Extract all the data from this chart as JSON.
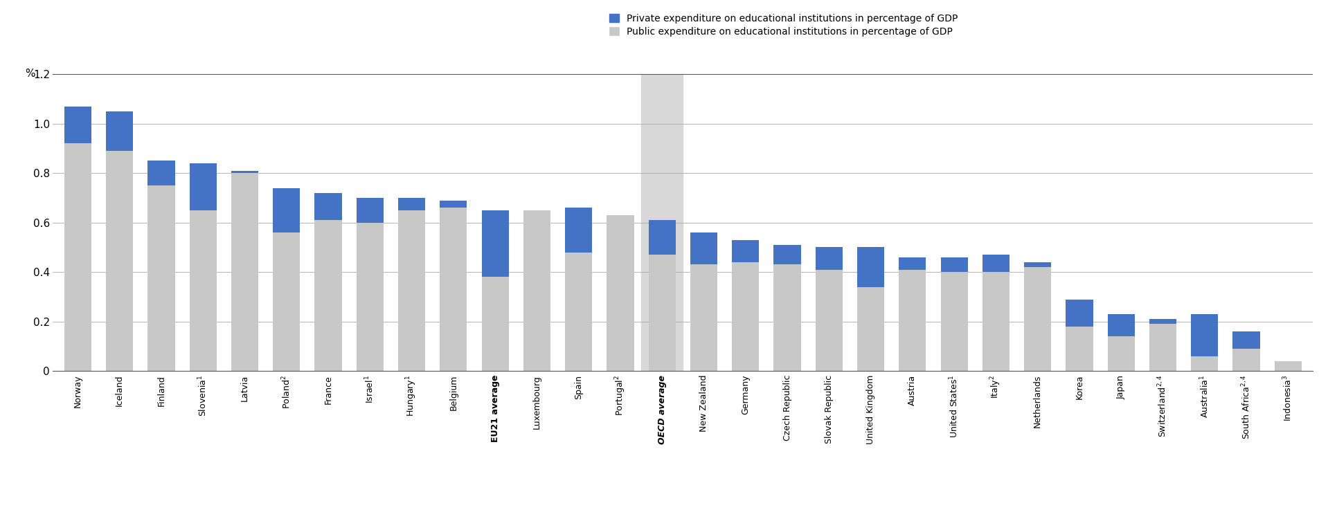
{
  "country_labels": [
    "Norway",
    "Iceland",
    "Finland",
    "Slovenia$^1$",
    "Latvia",
    "Poland$^2$",
    "France",
    "Israel$^1$",
    "Hungary$^1$",
    "Belgium",
    "EU21 average",
    "Luxembourg",
    "Spain",
    "Portugal$^2$",
    "OECD average",
    "New Zealand",
    "Germany",
    "Czech Republic",
    "Slovak Republic",
    "United Kingdom",
    "Austria",
    "United States$^1$",
    "Italy$^2$",
    "Netherlands",
    "Korea",
    "Japan",
    "Switzerland$^{2, 4}$",
    "Australia$^1$",
    "South Africa$^{2, 4}$",
    "Indonesia$^3$"
  ],
  "public": [
    0.92,
    0.89,
    0.75,
    0.65,
    0.8,
    0.56,
    0.61,
    0.6,
    0.65,
    0.66,
    0.38,
    0.65,
    0.48,
    0.63,
    0.47,
    0.43,
    0.44,
    0.43,
    0.41,
    0.34,
    0.41,
    0.4,
    0.4,
    0.42,
    0.18,
    0.14,
    0.19,
    0.06,
    0.09,
    0.04
  ],
  "private": [
    0.15,
    0.16,
    0.1,
    0.19,
    0.01,
    0.18,
    0.11,
    0.1,
    0.05,
    0.03,
    0.27,
    0.0,
    0.18,
    0.0,
    0.14,
    0.13,
    0.09,
    0.08,
    0.09,
    0.16,
    0.05,
    0.06,
    0.07,
    0.02,
    0.11,
    0.09,
    0.02,
    0.17,
    0.07,
    0.0
  ],
  "oecd_avg_index": 14,
  "public_color": "#c8c8c8",
  "private_color": "#4472c4",
  "oecd_bg_color": "#d8d8d8",
  "legend_private": "Private expenditure on educational institutions in percentage of GDP",
  "legend_public": "Public expenditure on educational institutions in percentage of GDP",
  "ylabel": "%",
  "ylim": [
    0,
    1.2
  ],
  "yticks": [
    0,
    0.2,
    0.4,
    0.6,
    0.8,
    1.0,
    1.2
  ]
}
